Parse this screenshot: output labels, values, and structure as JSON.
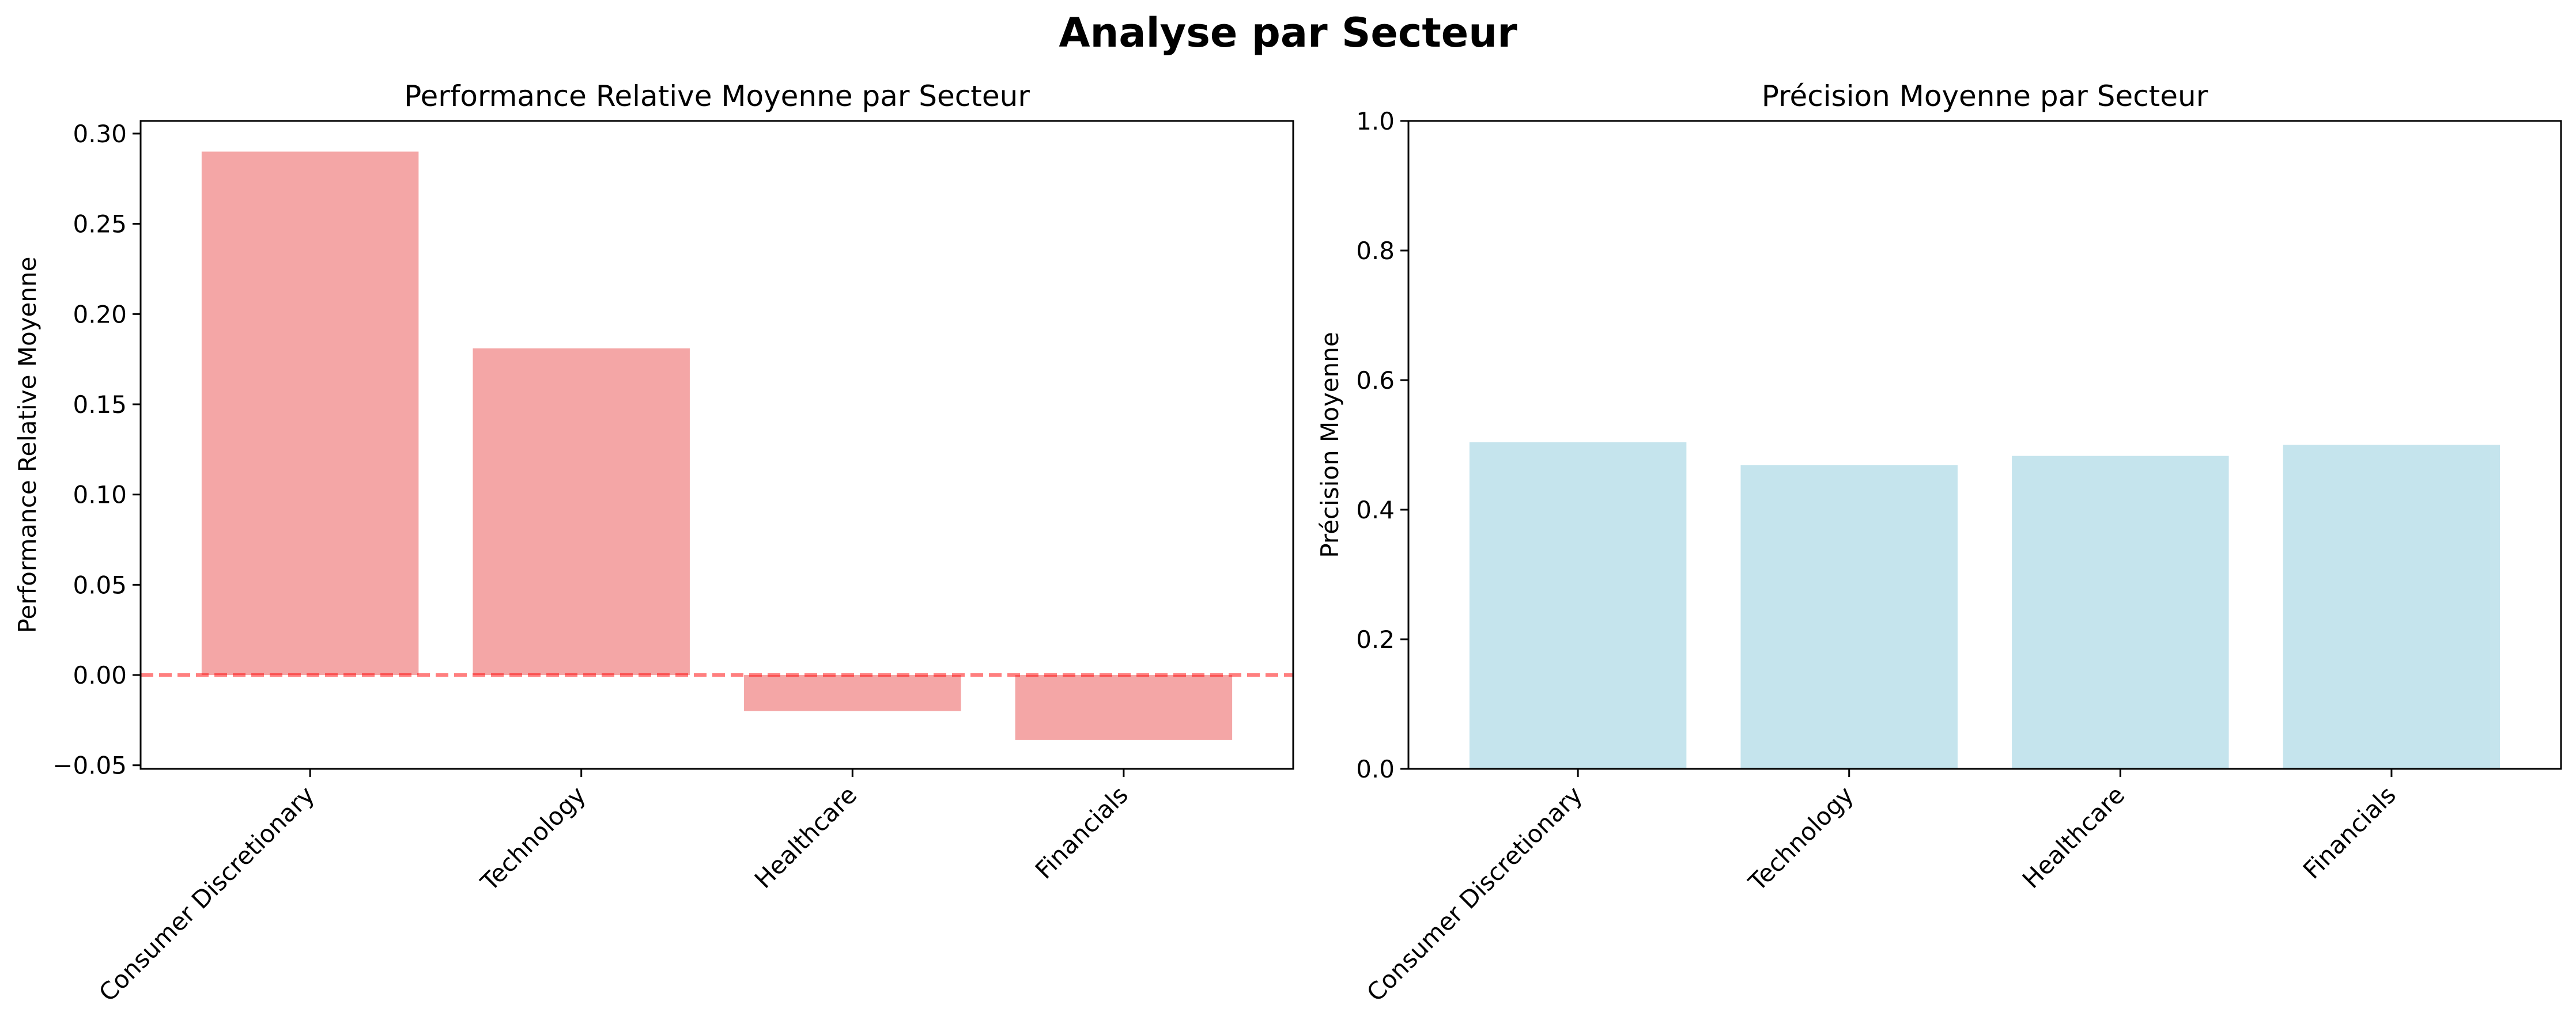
{
  "figure": {
    "title": "Analyse par Secteur"
  },
  "chart_data": [
    {
      "type": "bar",
      "title": "Performance Relative Moyenne par Secteur",
      "xlabel": "",
      "ylabel": "Performance Relative Moyenne",
      "categories": [
        "Consumer Discretionary",
        "Technology",
        "Healthcare",
        "Financials"
      ],
      "values": [
        0.29,
        0.181,
        -0.02,
        -0.036
      ],
      "ylim": [
        -0.052,
        0.307
      ],
      "yticks": [
        -0.05,
        0.0,
        0.05,
        0.1,
        0.15,
        0.2,
        0.25,
        0.3
      ],
      "ytick_labels": [
        "−0.05",
        "0.00",
        "0.05",
        "0.10",
        "0.15",
        "0.20",
        "0.25",
        "0.30"
      ],
      "bar_color": "#f08080",
      "reference_line": {
        "y": 0,
        "style": "dashed",
        "color": "#ff0000"
      },
      "grid": false,
      "legend": "none"
    },
    {
      "type": "bar",
      "title": "Précision Moyenne par Secteur",
      "xlabel": "",
      "ylabel": "Précision Moyenne",
      "categories": [
        "Consumer Discretionary",
        "Technology",
        "Healthcare",
        "Financials"
      ],
      "values": [
        0.504,
        0.469,
        0.483,
        0.5
      ],
      "ylim": [
        0,
        1.0
      ],
      "yticks": [
        0.0,
        0.2,
        0.4,
        0.6,
        0.8,
        1.0
      ],
      "ytick_labels": [
        "0.0",
        "0.2",
        "0.4",
        "0.6",
        "0.8",
        "1.0"
      ],
      "bar_color": "#add8e6",
      "grid": false,
      "legend": "none"
    }
  ]
}
